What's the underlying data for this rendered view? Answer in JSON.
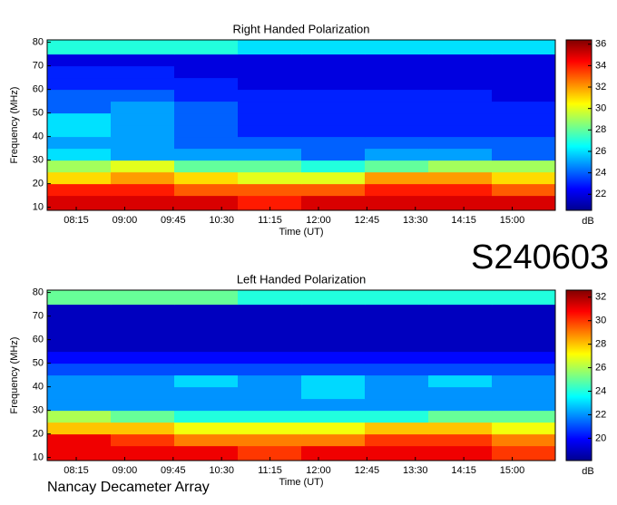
{
  "chart_data": [
    {
      "type": "heatmap",
      "title": "Right Handed Polarization",
      "x_label": "Time (UT)",
      "y_label": "Frequency (MHz)",
      "colorbar_label": "dB",
      "xlim": [
        "07:48",
        "15:40"
      ],
      "xticks": [
        "08:15",
        "09:00",
        "09:45",
        "10:30",
        "11:15",
        "12:00",
        "12:45",
        "13:30",
        "14:15",
        "15:00"
      ],
      "ylim": [
        8.7,
        81
      ],
      "yticks": [
        10,
        20,
        30,
        40,
        50,
        60,
        70,
        80
      ],
      "clim": [
        20.5,
        36.4
      ],
      "cticks": [
        22,
        24,
        26,
        28,
        30,
        32,
        34,
        36
      ],
      "xbins": [
        "07:48",
        "08:47",
        "09:46",
        "10:45",
        "11:44",
        "12:43",
        "13:42",
        "14:41",
        "15:40"
      ],
      "ybins": [
        8.7,
        15,
        20,
        25,
        30,
        35,
        40,
        45,
        50,
        55,
        60,
        65,
        70,
        75,
        81
      ],
      "z": [
        [
          35,
          35,
          35,
          34,
          35,
          35,
          35,
          35
        ],
        [
          34,
          34,
          33,
          33,
          33,
          34,
          34,
          33
        ],
        [
          31,
          32,
          31,
          30,
          30,
          32,
          32,
          31
        ],
        [
          29,
          30,
          28,
          28,
          27,
          28,
          29,
          29
        ],
        [
          26,
          25,
          25,
          25,
          24,
          25,
          25,
          24
        ],
        [
          25,
          25,
          24,
          24,
          24,
          24,
          24,
          24
        ],
        [
          26,
          25,
          24,
          23,
          23,
          23,
          23,
          23
        ],
        [
          26,
          25,
          24,
          23,
          23,
          23,
          23,
          23
        ],
        [
          24,
          25,
          24,
          23,
          23,
          23,
          23,
          23
        ],
        [
          24,
          24,
          23,
          23,
          23,
          23,
          23,
          22
        ],
        [
          23,
          23,
          23,
          22,
          22,
          22,
          22,
          22
        ],
        [
          23,
          23,
          22,
          22,
          22,
          22,
          22,
          22
        ],
        [
          22,
          22,
          22,
          22,
          22,
          22,
          22,
          22
        ],
        [
          27,
          27,
          27,
          26,
          26,
          26,
          26,
          26
        ]
      ]
    },
    {
      "type": "heatmap",
      "title": "Left Handed Polarization",
      "x_label": "Time (UT)",
      "y_label": "Frequency (MHz)",
      "colorbar_label": "dB",
      "xlim": [
        "07:48",
        "15:40"
      ],
      "xticks": [
        "08:15",
        "09:00",
        "09:45",
        "10:30",
        "11:15",
        "12:00",
        "12:45",
        "13:30",
        "14:15",
        "15:00"
      ],
      "ylim": [
        8.7,
        81
      ],
      "yticks": [
        10,
        20,
        30,
        40,
        50,
        60,
        70,
        80
      ],
      "clim": [
        18.1,
        32.6
      ],
      "cticks": [
        20,
        22,
        24,
        26,
        28,
        30,
        32
      ],
      "xbins": [
        "07:48",
        "08:47",
        "09:46",
        "10:45",
        "11:44",
        "12:43",
        "13:42",
        "14:41",
        "15:40"
      ],
      "ybins": [
        8.7,
        15,
        20,
        25,
        30,
        35,
        40,
        45,
        50,
        55,
        60,
        65,
        70,
        75,
        81
      ],
      "z": [
        [
          31,
          31,
          31,
          30,
          31,
          31,
          31,
          30
        ],
        [
          31,
          30,
          29,
          29,
          29,
          30,
          30,
          29
        ],
        [
          28,
          28,
          27,
          27,
          27,
          28,
          28,
          27
        ],
        [
          26,
          25,
          24,
          24,
          24,
          24,
          25,
          25
        ],
        [
          22,
          22,
          22,
          22,
          22,
          22,
          22,
          22
        ],
        [
          22,
          22,
          22,
          22,
          23,
          22,
          22,
          22
        ],
        [
          22,
          22,
          23,
          22,
          23,
          22,
          23,
          22
        ],
        [
          21,
          21,
          21,
          21,
          21,
          21,
          21,
          21
        ],
        [
          20,
          20,
          20,
          20,
          20,
          20,
          20,
          20
        ],
        [
          19,
          19,
          19,
          19,
          19,
          19,
          19,
          19
        ],
        [
          19,
          19,
          19,
          19,
          19,
          19,
          19,
          19
        ],
        [
          19,
          19,
          19,
          19,
          19,
          19,
          19,
          19
        ],
        [
          19,
          19,
          19,
          19,
          19,
          19,
          19,
          19
        ],
        [
          25,
          25,
          25,
          24,
          24,
          24,
          24,
          24
        ]
      ]
    }
  ],
  "event_id": "S240603",
  "instrument": "Nancay Decameter Array"
}
